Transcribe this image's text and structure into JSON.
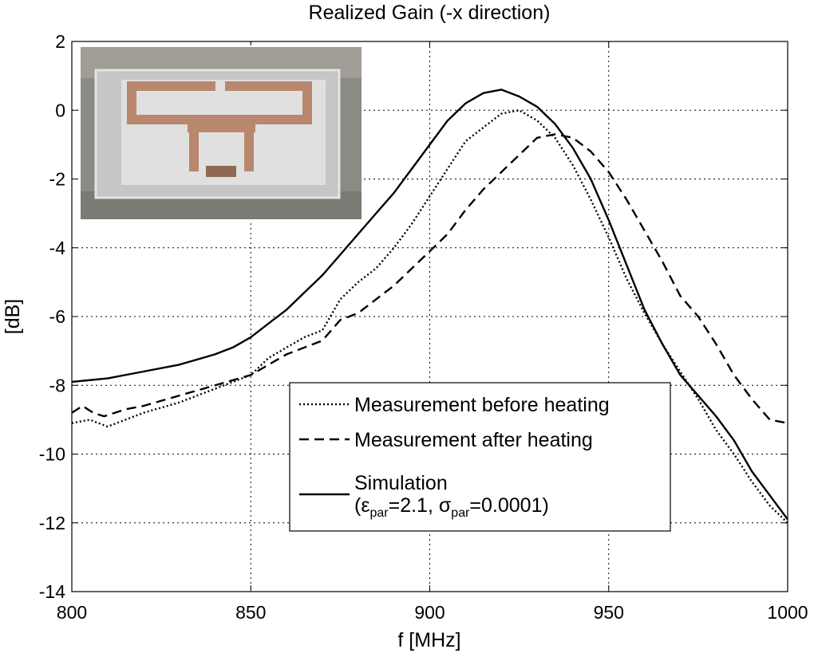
{
  "chart_data": {
    "type": "line",
    "title": "Realized Gain (-x direction)",
    "xlabel": "f [MHz]",
    "ylabel": "[dB]",
    "xlim": [
      800,
      1000
    ],
    "ylim": [
      -14,
      2
    ],
    "x_ticks": [
      800,
      850,
      900,
      950,
      1000
    ],
    "y_ticks": [
      2,
      0,
      -2,
      -4,
      -6,
      -8,
      -10,
      -12,
      -14
    ],
    "grid": true,
    "legend_position": "bottom-right",
    "inset": "photograph of the fabricated antenna prototype (top-left)",
    "series": [
      {
        "name": "Measurement before heating",
        "style": "dotted",
        "x": [
          800,
          805,
          810,
          820,
          830,
          840,
          850,
          855,
          860,
          865,
          870,
          875,
          880,
          885,
          890,
          895,
          900,
          905,
          910,
          915,
          920,
          925,
          930,
          935,
          940,
          945,
          950,
          955,
          960,
          965,
          970,
          975,
          980,
          985,
          990,
          995,
          1000
        ],
        "values": [
          -9.1,
          -9.0,
          -9.2,
          -8.8,
          -8.5,
          -8.1,
          -7.7,
          -7.2,
          -6.9,
          -6.6,
          -6.4,
          -5.5,
          -5.0,
          -4.6,
          -4.0,
          -3.3,
          -2.5,
          -1.7,
          -0.9,
          -0.5,
          -0.1,
          0.0,
          -0.3,
          -0.8,
          -1.6,
          -2.6,
          -3.7,
          -4.9,
          -5.9,
          -6.8,
          -7.6,
          -8.4,
          -9.3,
          -10.0,
          -10.8,
          -11.5,
          -12.0
        ]
      },
      {
        "name": "Measurement after heating",
        "style": "dashed",
        "x": [
          800,
          803,
          806,
          809,
          815,
          820,
          830,
          840,
          850,
          860,
          870,
          875,
          880,
          885,
          890,
          895,
          900,
          905,
          910,
          915,
          920,
          925,
          930,
          935,
          940,
          945,
          950,
          955,
          960,
          965,
          970,
          975,
          980,
          985,
          990,
          995,
          1000
        ],
        "values": [
          -8.8,
          -8.6,
          -8.8,
          -8.9,
          -8.7,
          -8.6,
          -8.3,
          -8.0,
          -7.7,
          -7.1,
          -6.7,
          -6.1,
          -5.9,
          -5.5,
          -5.1,
          -4.6,
          -4.1,
          -3.6,
          -2.9,
          -2.3,
          -1.8,
          -1.3,
          -0.8,
          -0.7,
          -0.8,
          -1.2,
          -1.8,
          -2.6,
          -3.5,
          -4.4,
          -5.4,
          -6.0,
          -6.8,
          -7.7,
          -8.4,
          -9.0,
          -9.1
        ]
      },
      {
        "name": "Simulation (εpar=2.1, σpar=0.0001)",
        "style": "solid",
        "x": [
          800,
          810,
          820,
          830,
          840,
          845,
          850,
          855,
          860,
          865,
          870,
          875,
          880,
          885,
          890,
          895,
          900,
          905,
          910,
          915,
          920,
          925,
          930,
          935,
          940,
          945,
          950,
          955,
          960,
          965,
          970,
          975,
          980,
          985,
          990,
          995,
          1000
        ],
        "values": [
          -7.9,
          -7.8,
          -7.6,
          -7.4,
          -7.1,
          -6.9,
          -6.6,
          -6.2,
          -5.8,
          -5.3,
          -4.8,
          -4.2,
          -3.6,
          -3.0,
          -2.4,
          -1.7,
          -1.0,
          -0.3,
          0.2,
          0.5,
          0.6,
          0.4,
          0.1,
          -0.4,
          -1.1,
          -2.0,
          -3.2,
          -4.5,
          -5.8,
          -6.8,
          -7.7,
          -8.3,
          -8.9,
          -9.6,
          -10.5,
          -11.2,
          -11.9
        ]
      }
    ],
    "legend": {
      "entry1": "Measurement before heating",
      "entry2": "Measurement after heating",
      "entry3_line1": "Simulation",
      "entry3_eps_open": "(ε",
      "entry3_eps_sub": "par",
      "entry3_eps_val": "=2.1, σ",
      "entry3_sigma_sub": "par",
      "entry3_sigma_val": "=0.0001)"
    }
  },
  "colors": {
    "background": "#ffffff",
    "line": "#000000",
    "grid": "#000000"
  }
}
